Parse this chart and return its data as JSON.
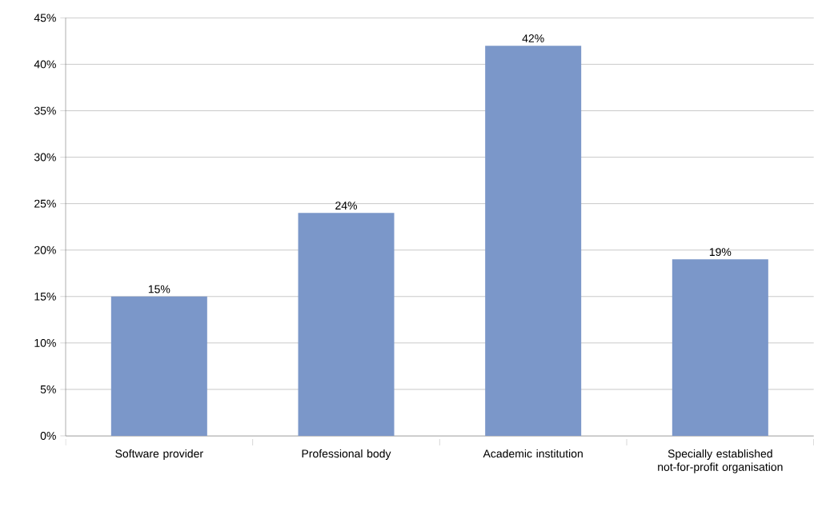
{
  "chart_data": {
    "type": "bar",
    "categories": [
      "Software provider",
      "Professional body",
      "Academic institution",
      "Specially established not-for-profit organisation"
    ],
    "values": [
      15,
      24,
      42,
      19
    ],
    "value_labels": [
      "15%",
      "24%",
      "42%",
      "19%"
    ],
    "color": "#7b97c9",
    "ylim": [
      0,
      45
    ],
    "yticks": [
      {
        "value": 0,
        "label": "0%"
      },
      {
        "value": 5,
        "label": "5%"
      },
      {
        "value": 10,
        "label": "10%"
      },
      {
        "value": 15,
        "label": "15%"
      },
      {
        "value": 20,
        "label": "20%"
      },
      {
        "value": 25,
        "label": "25%"
      },
      {
        "value": 30,
        "label": "30%"
      },
      {
        "value": 35,
        "label": "35%"
      },
      {
        "value": 40,
        "label": "40%"
      },
      {
        "value": 45,
        "label": "45%"
      }
    ],
    "grid": "y"
  }
}
